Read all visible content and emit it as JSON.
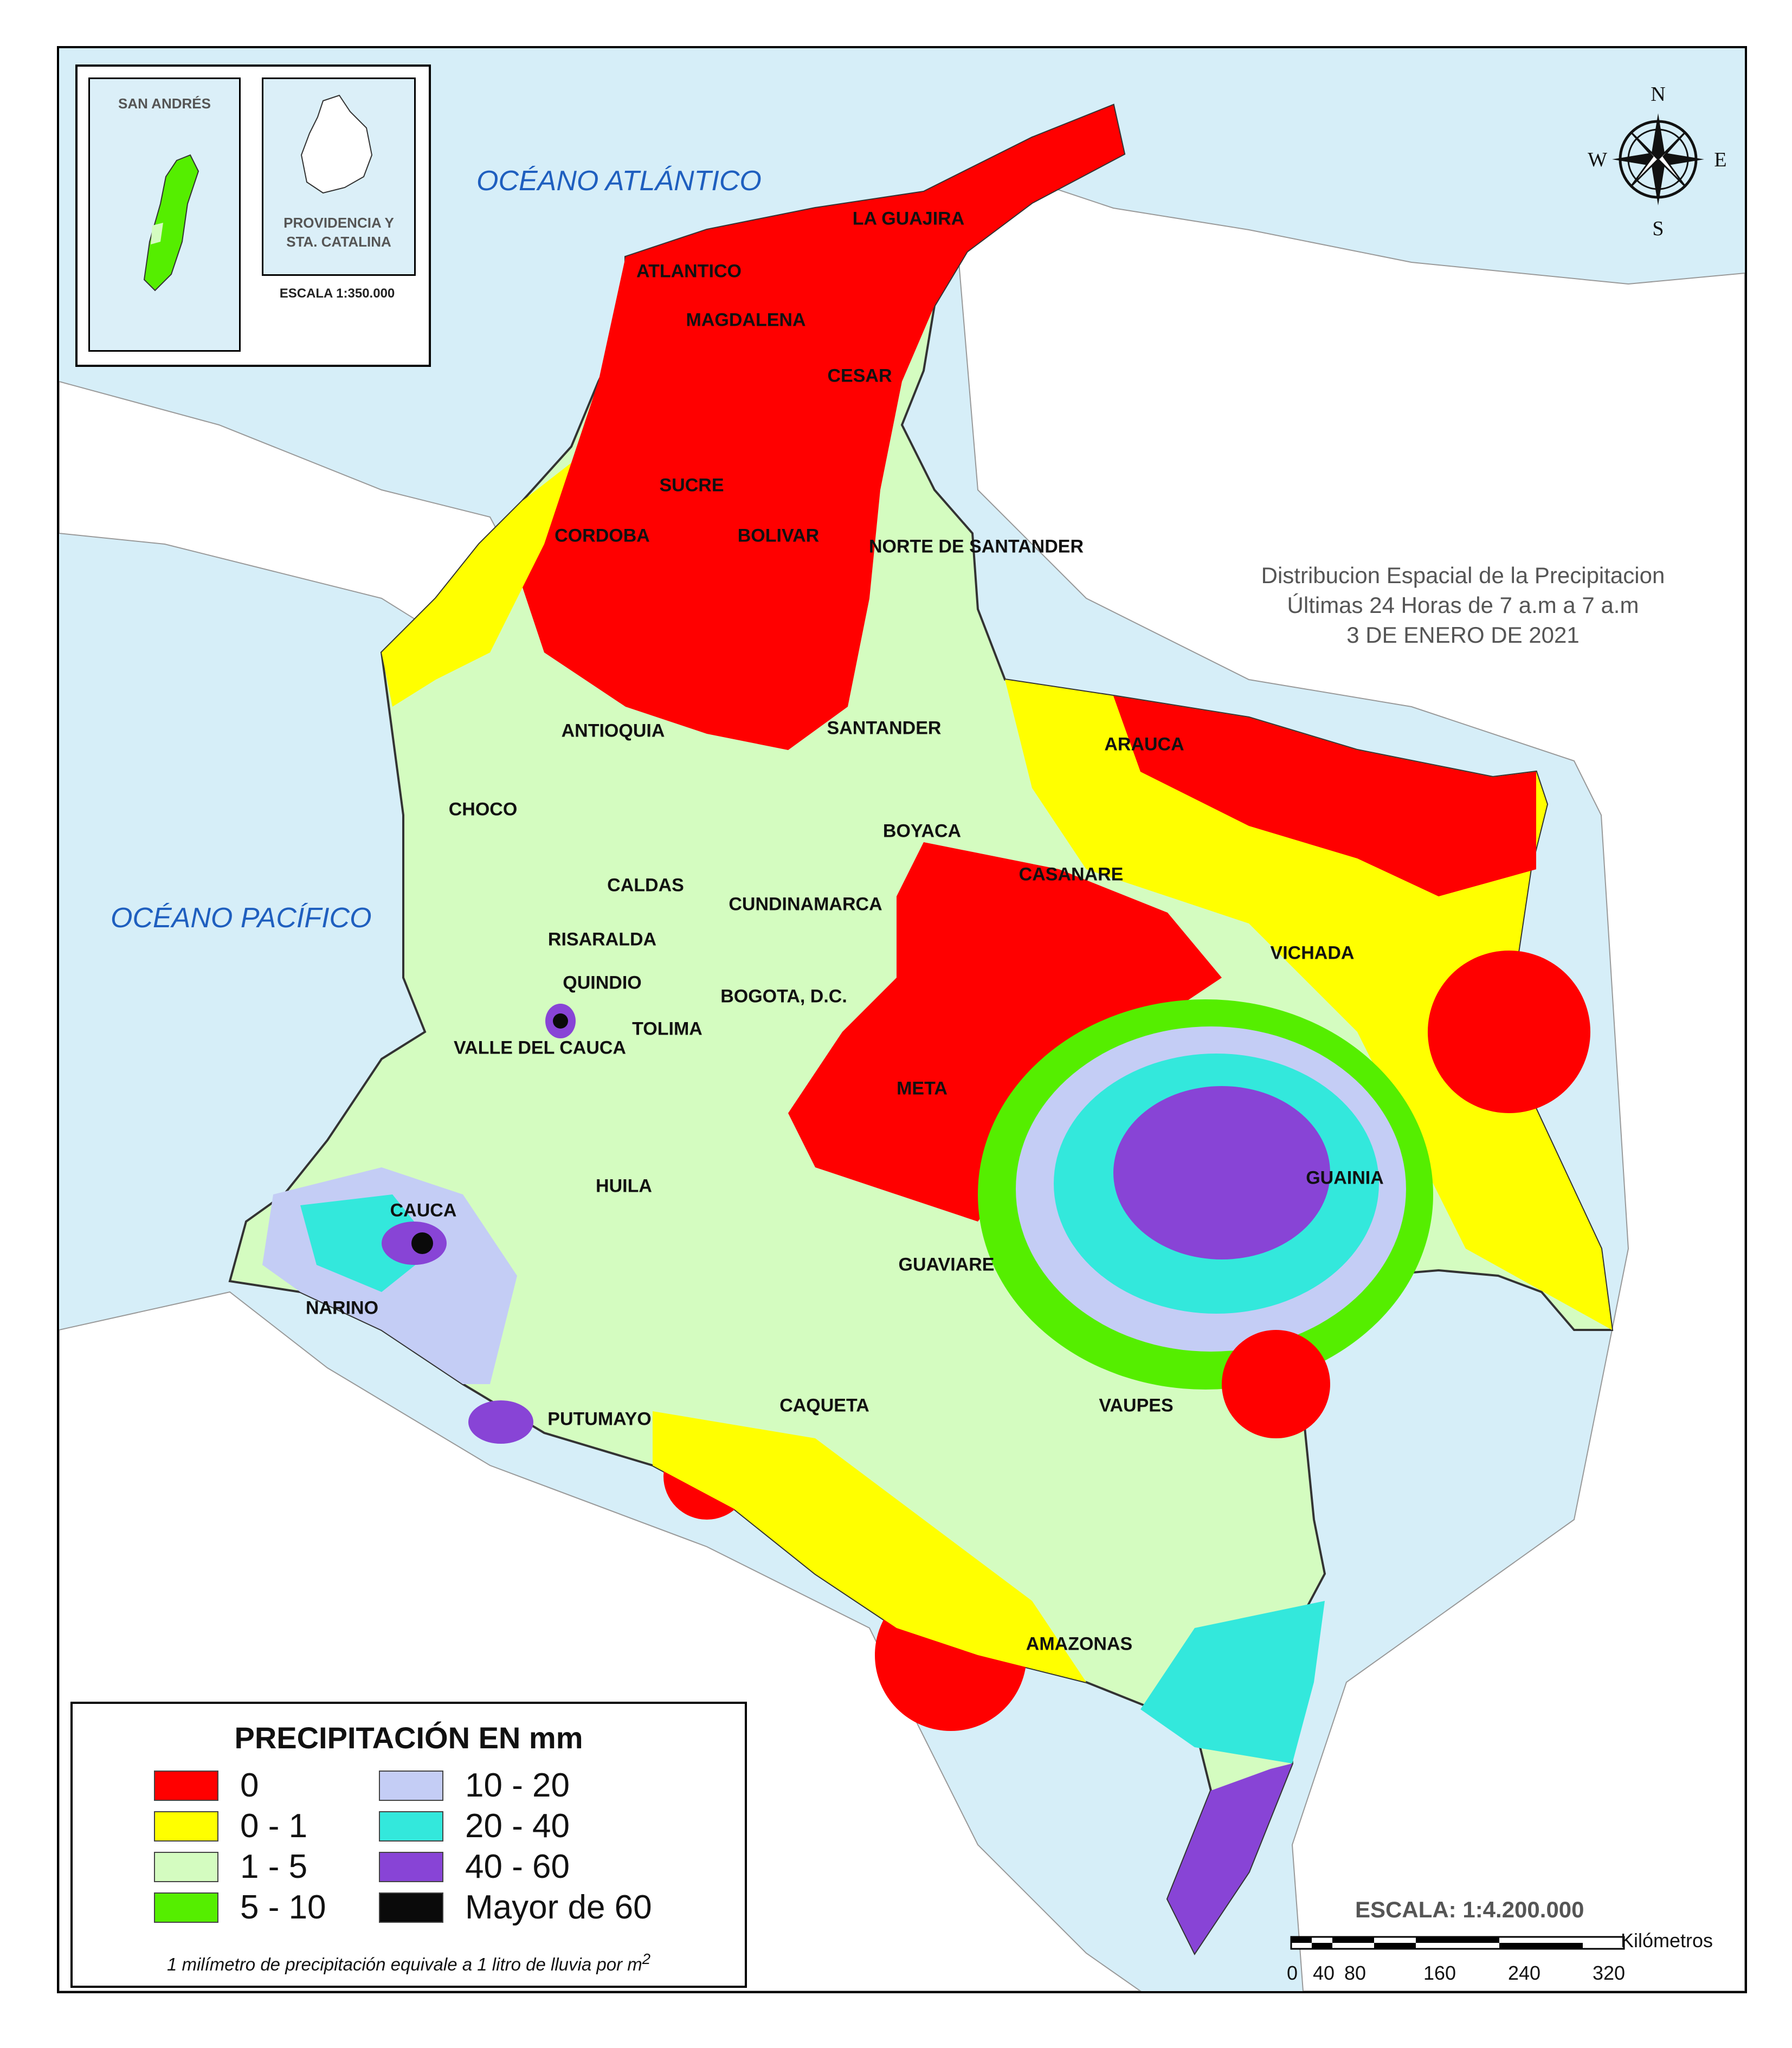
{
  "oceans": {
    "atlantic": "OCÉANO ATLÁNTICO",
    "pacific": "OCÉANO PACÍFICO"
  },
  "title": {
    "line1": "Distribucion Espacial de la Precipitacion",
    "line2": "Últimas 24 Horas de 7 a.m  a  7 a.m",
    "line3": "3 DE ENERO DE 2021"
  },
  "inset": {
    "san_andres": "SAN ANDRÉS",
    "providencia_line1": "PROVIDENCIA Y",
    "providencia_line2": "STA. CATALINA",
    "scale": "ESCALA 1:350.000"
  },
  "compass": {
    "north": "N",
    "south": "S",
    "east": "E",
    "west": "W"
  },
  "departments": [
    "LA GUAJIRA",
    "ATLANTICO",
    "MAGDALENA",
    "CESAR",
    "SUCRE",
    "CORDOBA",
    "BOLIVAR",
    "NORTE DE SANTANDER",
    "ANTIOQUIA",
    "SANTANDER",
    "ARAUCA",
    "CHOCO",
    "BOYACA",
    "CASANARE",
    "CALDAS",
    "CUNDINAMARCA",
    "RISARALDA",
    "VICHADA",
    "QUINDIO",
    "BOGOTA, D.C.",
    "TOLIMA",
    "VALLE DEL CAUCA",
    "META",
    "GUAINIA",
    "HUILA",
    "CAUCA",
    "GUAVIARE",
    "NARINO",
    "VAUPES",
    "CAQUETA",
    "PUTUMAYO",
    "AMAZONAS"
  ],
  "legend": {
    "title": "PRECIPITACIÓN EN mm",
    "items": [
      {
        "label": "0",
        "color": "#ff0000"
      },
      {
        "label": "0 - 1",
        "color": "#ffff00"
      },
      {
        "label": "1 - 5",
        "color": "#d4fcc0"
      },
      {
        "label": "5 - 10",
        "color": "#55ee00"
      },
      {
        "label": "10 - 20",
        "color": "#c4cdf5"
      },
      {
        "label": "20 - 40",
        "color": "#33e8dc"
      },
      {
        "label": "40 - 60",
        "color": "#8844d6"
      },
      {
        "label": "Mayor de 60",
        "color": "#0a0a0a"
      }
    ],
    "note": "1 milímetro de precipitación equivale a 1 litro de lluvia por m",
    "note_sup": "2"
  },
  "scale": {
    "text": "ESCALA: 1:4.200.000",
    "unit": "Kilómetros",
    "ticks": [
      "0",
      "40",
      "80",
      "160",
      "240",
      "320"
    ]
  },
  "colors": {
    "sea": "#d6eef8",
    "land_other": "#ffffff",
    "c0": "#ff0000",
    "c1": "#ffff00",
    "c5": "#d4fcc0",
    "c10": "#55ee00",
    "c20": "#c4cdf5",
    "c40": "#33e8dc",
    "c60": "#8844d6",
    "c99": "#0a0a0a"
  }
}
